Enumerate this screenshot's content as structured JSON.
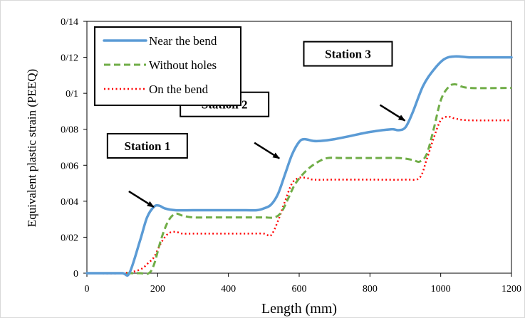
{
  "chart_data": {
    "type": "line",
    "xlabel": "Length (mm)",
    "ylabel": "Equivalent plastic strain (PEEQ)",
    "xlim": [
      0,
      1200
    ],
    "ylim": [
      0,
      0.14
    ],
    "x_ticks": [
      0,
      200,
      400,
      600,
      800,
      1000,
      1200
    ],
    "x_tick_labels": [
      "0",
      "200",
      "400",
      "600",
      "800",
      "1000",
      "1200"
    ],
    "y_ticks": [
      0,
      0.02,
      0.04,
      0.06,
      0.08,
      0.1,
      0.12,
      0.14
    ],
    "y_tick_labels": [
      "0",
      "0/02",
      "0/04",
      "0/06",
      "0/08",
      "0/1",
      "0/12",
      "0/14"
    ],
    "grid": false,
    "legend_position": "top-left",
    "series": [
      {
        "name": "Near the bend",
        "color": "#5B9BD5",
        "style": "solid",
        "x": [
          0,
          50,
          100,
          120,
          150,
          170,
          190,
          205,
          220,
          250,
          300,
          350,
          400,
          450,
          480,
          500,
          520,
          540,
          560,
          580,
          600,
          615,
          640,
          660,
          700,
          750,
          800,
          860,
          880,
          900,
          920,
          950,
          980,
          1010,
          1040,
          1080,
          1120,
          1200
        ],
        "y": [
          0,
          0,
          0,
          0,
          0.018,
          0.031,
          0.037,
          0.0375,
          0.036,
          0.035,
          0.035,
          0.035,
          0.035,
          0.035,
          0.035,
          0.036,
          0.038,
          0.044,
          0.055,
          0.066,
          0.073,
          0.0745,
          0.0735,
          0.0735,
          0.0745,
          0.0765,
          0.0785,
          0.08,
          0.0795,
          0.081,
          0.089,
          0.104,
          0.113,
          0.119,
          0.1205,
          0.12,
          0.12,
          0.12
        ]
      },
      {
        "name": "Without holes",
        "color": "#70AD47",
        "style": "dashed",
        "x": [
          0,
          100,
          150,
          175,
          190,
          210,
          230,
          250,
          270,
          300,
          350,
          400,
          450,
          500,
          530,
          550,
          570,
          590,
          620,
          650,
          680,
          720,
          800,
          880,
          920,
          940,
          960,
          980,
          1000,
          1020,
          1040,
          1080,
          1200
        ],
        "y": [
          0,
          0,
          0,
          0,
          0.005,
          0.019,
          0.029,
          0.033,
          0.032,
          0.031,
          0.031,
          0.031,
          0.031,
          0.031,
          0.031,
          0.034,
          0.042,
          0.05,
          0.057,
          0.0615,
          0.064,
          0.064,
          0.064,
          0.064,
          0.063,
          0.062,
          0.066,
          0.08,
          0.096,
          0.103,
          0.105,
          0.103,
          0.103
        ]
      },
      {
        "name": "On the bend",
        "color": "#FF0000",
        "style": "dotted",
        "x": [
          0,
          100,
          150,
          175,
          190,
          210,
          230,
          250,
          270,
          300,
          350,
          400,
          450,
          500,
          520,
          540,
          560,
          580,
          600,
          620,
          640,
          700,
          800,
          900,
          940,
          960,
          980,
          1000,
          1020,
          1040,
          1080,
          1200
        ],
        "y": [
          0,
          0,
          0.002,
          0.006,
          0.009,
          0.017,
          0.022,
          0.023,
          0.022,
          0.022,
          0.022,
          0.022,
          0.022,
          0.022,
          0.021,
          0.029,
          0.04,
          0.05,
          0.053,
          0.053,
          0.052,
          0.052,
          0.052,
          0.052,
          0.053,
          0.063,
          0.075,
          0.085,
          0.087,
          0.086,
          0.085,
          0.085
        ]
      }
    ],
    "annotations": [
      {
        "text": "Station 1",
        "x": 195,
        "y": 0.036
      },
      {
        "text": "Station 2",
        "x": 550,
        "y": 0.063
      },
      {
        "text": "Station 3",
        "x": 905,
        "y": 0.084
      }
    ]
  }
}
